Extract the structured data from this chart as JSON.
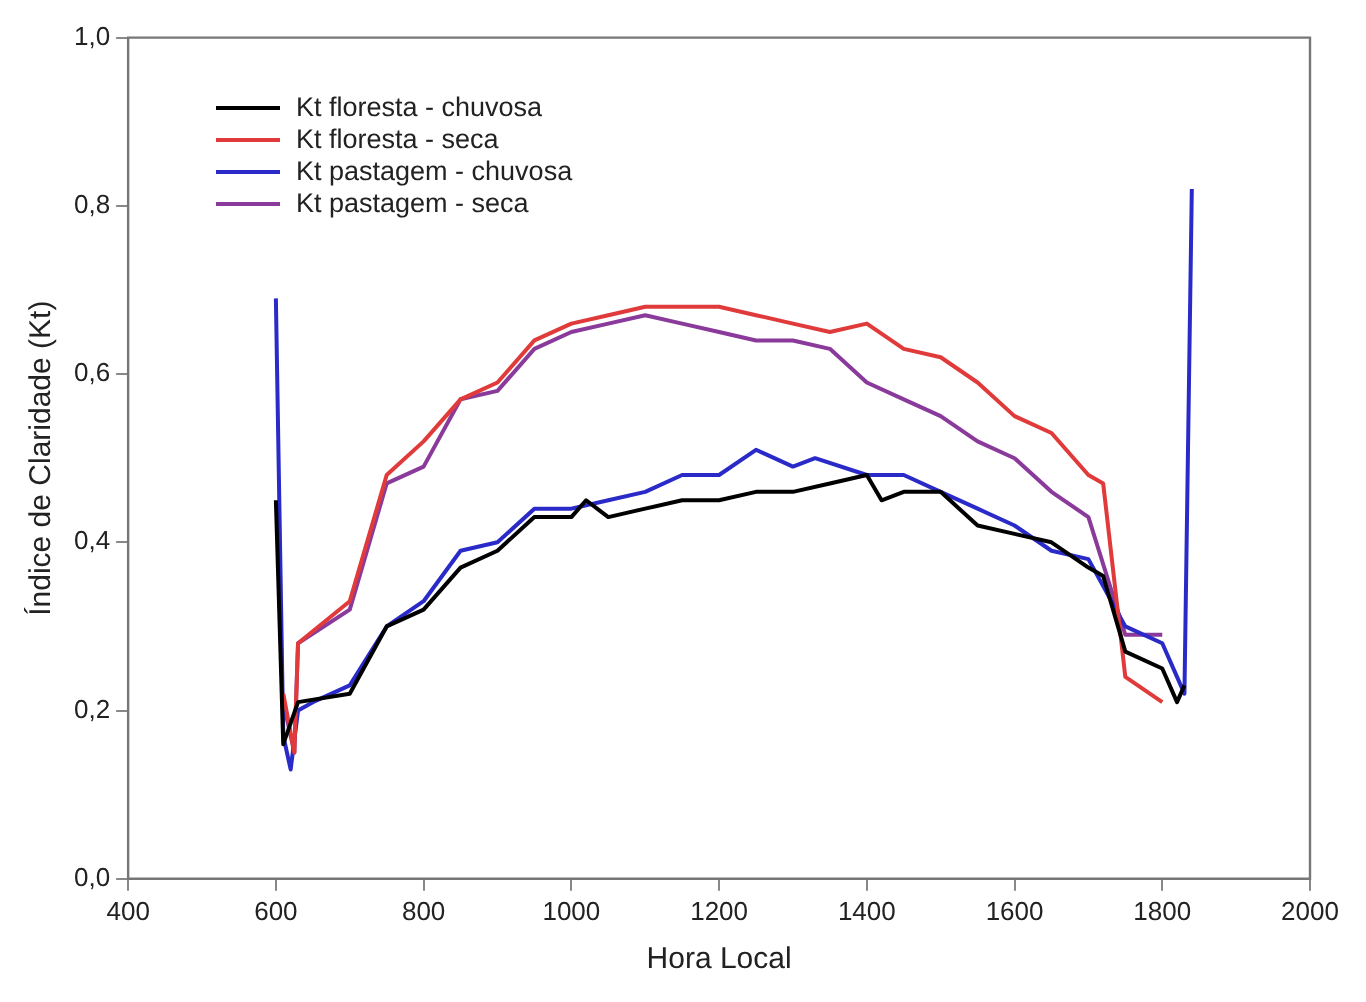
{
  "chart_data": {
    "type": "line",
    "xlabel": "Hora Local",
    "ylabel": "Índice de Claridade (Kt)",
    "xlim": [
      400,
      2000
    ],
    "xticks": [
      400,
      600,
      800,
      1000,
      1200,
      1400,
      1600,
      1800,
      2000
    ],
    "ylim": [
      0,
      1
    ],
    "yticks": [
      {
        "value": 0,
        "label": "0,0"
      },
      {
        "value": 0.2,
        "label": "0,2"
      },
      {
        "value": 0.4,
        "label": "0,4"
      },
      {
        "value": 0.6,
        "label": "0,6"
      },
      {
        "value": 0.8,
        "label": "0,8"
      },
      {
        "value": 1,
        "label": "1,0"
      }
    ],
    "grid": false,
    "legend": "top left",
    "marker": "none",
    "line_style": "solid",
    "series": [
      {
        "name": "Kt floresta - chuvosa",
        "color": "#000000",
        "x": [
          600,
          610,
          630,
          700,
          750,
          800,
          850,
          900,
          950,
          1000,
          1020,
          1050,
          1100,
          1150,
          1200,
          1250,
          1300,
          1350,
          1400,
          1420,
          1450,
          1500,
          1550,
          1600,
          1650,
          1700,
          1720,
          1750,
          1800,
          1820,
          1830
        ],
        "values": [
          0.45,
          0.16,
          0.21,
          0.22,
          0.3,
          0.32,
          0.37,
          0.39,
          0.43,
          0.43,
          0.45,
          0.43,
          0.44,
          0.45,
          0.45,
          0.46,
          0.46,
          0.47,
          0.48,
          0.45,
          0.46,
          0.46,
          0.42,
          0.41,
          0.4,
          0.37,
          0.36,
          0.27,
          0.25,
          0.21,
          0.23
        ]
      },
      {
        "name": "Kt floresta - seca",
        "color": "#e03a3a",
        "x": [
          610,
          625,
          630,
          700,
          750,
          800,
          850,
          900,
          950,
          1000,
          1050,
          1100,
          1150,
          1200,
          1250,
          1300,
          1350,
          1400,
          1450,
          1500,
          1550,
          1600,
          1650,
          1700,
          1720,
          1750,
          1800
        ],
        "values": [
          0.22,
          0.15,
          0.28,
          0.33,
          0.48,
          0.52,
          0.57,
          0.59,
          0.64,
          0.66,
          0.67,
          0.68,
          0.68,
          0.68,
          0.67,
          0.66,
          0.65,
          0.66,
          0.63,
          0.62,
          0.59,
          0.55,
          0.53,
          0.48,
          0.47,
          0.24,
          0.21
        ]
      },
      {
        "name": "Kt pastagem - chuvosa",
        "color": "#2a2ac8",
        "x": [
          600,
          610,
          620,
          630,
          650,
          700,
          750,
          800,
          850,
          900,
          950,
          1000,
          1050,
          1100,
          1150,
          1200,
          1250,
          1300,
          1330,
          1400,
          1450,
          1500,
          1550,
          1600,
          1650,
          1700,
          1750,
          1800,
          1820,
          1830,
          1840
        ],
        "values": [
          0.69,
          0.17,
          0.13,
          0.2,
          0.21,
          0.23,
          0.3,
          0.33,
          0.39,
          0.4,
          0.44,
          0.44,
          0.45,
          0.46,
          0.48,
          0.48,
          0.51,
          0.49,
          0.5,
          0.48,
          0.48,
          0.46,
          0.44,
          0.42,
          0.39,
          0.38,
          0.3,
          0.28,
          0.24,
          0.22,
          0.82
        ]
      },
      {
        "name": "Kt pastagem - seca",
        "color": "#8a3a9a",
        "x": [
          610,
          625,
          630,
          700,
          750,
          800,
          850,
          900,
          950,
          1000,
          1050,
          1100,
          1150,
          1200,
          1250,
          1300,
          1350,
          1400,
          1450,
          1500,
          1550,
          1600,
          1650,
          1700,
          1750,
          1800
        ],
        "values": [
          0.21,
          0.15,
          0.28,
          0.32,
          0.47,
          0.49,
          0.57,
          0.58,
          0.63,
          0.65,
          0.66,
          0.67,
          0.66,
          0.65,
          0.64,
          0.64,
          0.63,
          0.59,
          0.57,
          0.55,
          0.52,
          0.5,
          0.46,
          0.43,
          0.29,
          0.29
        ]
      }
    ]
  }
}
